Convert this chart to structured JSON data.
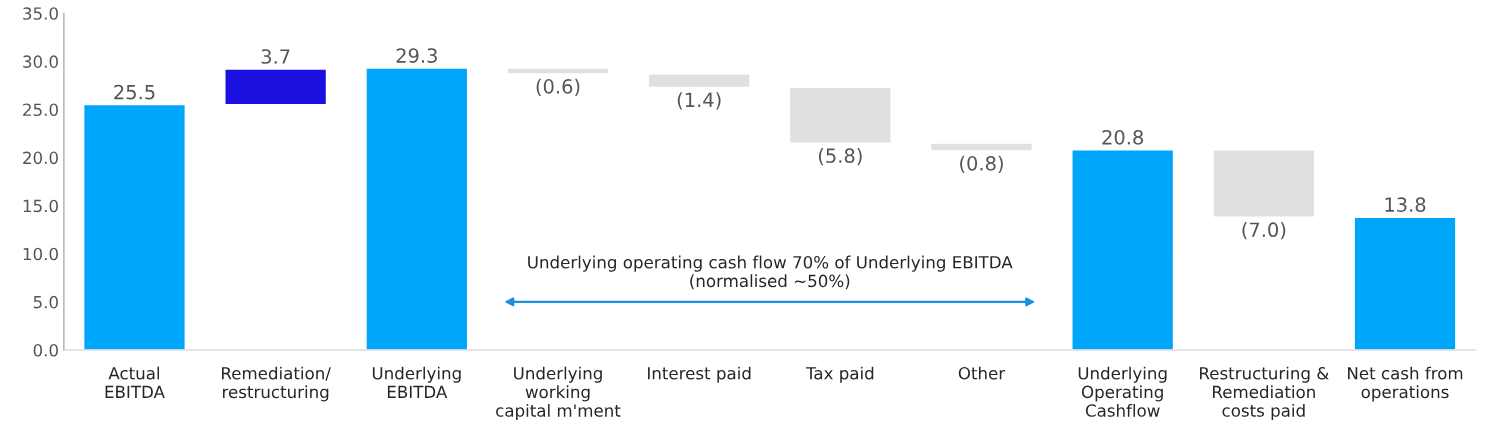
{
  "chart_data": {
    "type": "bar",
    "categories": [
      "Actual\nEBITDA",
      "Remediation/\nrestructuring",
      "Underlying\nEBITDA",
      "Underlying\nworking\ncapital m'ment",
      "Interest paid",
      "Tax paid",
      "Other",
      "Underlying\nOperating\nCashflow",
      "Restructuring &\nRemediation\ncosts paid",
      "Net cash from\noperations"
    ],
    "values": [
      25.5,
      3.7,
      29.3,
      -0.6,
      -1.4,
      -5.8,
      -0.8,
      20.8,
      -7.0,
      13.8
    ],
    "base": [
      0,
      25.5,
      0,
      29.3,
      28.7,
      27.3,
      21.5,
      0,
      20.8,
      0
    ],
    "colors": [
      "#00a6f9",
      "#1a10e0",
      "#00a6f9",
      "#e0e0e0",
      "#e0e0e0",
      "#e0e0e0",
      "#e0e0e0",
      "#00a6f9",
      "#e0e0e0",
      "#00a6f9"
    ],
    "value_labels": [
      "25.5",
      "3.7",
      "29.3",
      "(0.6)",
      "(1.4)",
      "(5.8)",
      "(0.8)",
      "20.8",
      "(7.0)",
      "13.8"
    ],
    "ylim": [
      0,
      35
    ],
    "yticks": [
      {
        "value": 0,
        "label": "0.0"
      },
      {
        "value": 5,
        "label": "5.0"
      },
      {
        "value": 10,
        "label": "10.0"
      },
      {
        "value": 15,
        "label": "15.0"
      },
      {
        "value": 20,
        "label": "20.0"
      },
      {
        "value": 25,
        "label": "25.0"
      },
      {
        "value": 30,
        "label": "30.0"
      },
      {
        "value": 35,
        "label": "35.0"
      }
    ],
    "grid": false,
    "legend": false,
    "annotations": [
      "Underlying operating cash flow 70% of Underlying EBITDA\n(normalised ~50%)"
    ]
  }
}
